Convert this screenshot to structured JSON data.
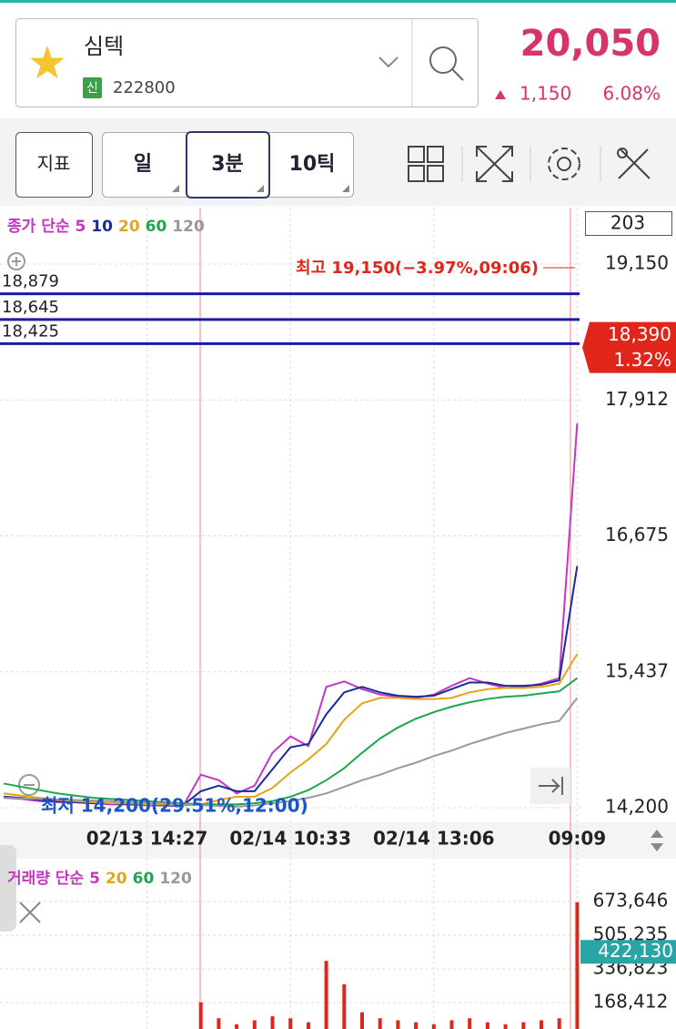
{
  "header": {
    "name": "심텍",
    "badge": "신",
    "code": "222800",
    "price": "20,050",
    "change": "1,150",
    "change_pct": "6.08%"
  },
  "toolbar": {
    "indicator": "지표",
    "periods": [
      "일",
      "3분",
      "10틱"
    ]
  },
  "count": "203",
  "chart_data": [
    {
      "type": "line",
      "legend_title": "종가 단순",
      "x": [
        null,
        null,
        null,
        null,
        null,
        null,
        null,
        null,
        "02/13 14:27",
        null,
        null,
        null,
        null,
        null,
        null,
        null,
        "02/14 10:33",
        null,
        null,
        null,
        null,
        null,
        null,
        null,
        "02/14 13:06",
        null,
        null,
        null,
        null,
        null,
        null,
        null,
        "09:09"
      ],
      "series": [
        {
          "name": "5",
          "color": "#c437c4",
          "values": [
            14290,
            14280,
            14260,
            14250,
            14250,
            14240,
            14230,
            14230,
            14220,
            14220,
            14210,
            14500,
            14450,
            14330,
            14400,
            14700,
            14850,
            14760,
            15300,
            15350,
            15280,
            15230,
            15210,
            15200,
            15230,
            15310,
            15380,
            15330,
            15290,
            15300,
            15330,
            15380,
            17700
          ]
        },
        {
          "name": "10",
          "color": "#1a2a9a",
          "values": [
            14300,
            14290,
            14270,
            14260,
            14250,
            14240,
            14240,
            14230,
            14230,
            14220,
            14220,
            14350,
            14400,
            14350,
            14350,
            14550,
            14750,
            14780,
            15050,
            15250,
            15300,
            15250,
            15220,
            15210,
            15220,
            15280,
            15340,
            15340,
            15310,
            15310,
            15320,
            15360,
            16400
          ]
        },
        {
          "name": "20",
          "color": "#e6a417",
          "values": [
            14330,
            14310,
            14290,
            14270,
            14260,
            14250,
            14240,
            14240,
            14230,
            14230,
            14220,
            14230,
            14270,
            14300,
            14300,
            14380,
            14520,
            14640,
            14780,
            15000,
            15150,
            15200,
            15200,
            15190,
            15190,
            15200,
            15250,
            15280,
            15290,
            15290,
            15300,
            15330,
            15600
          ]
        },
        {
          "name": "60",
          "color": "#1aa84a",
          "values": [
            14420,
            14390,
            14360,
            14330,
            14310,
            14290,
            14280,
            14270,
            14260,
            14250,
            14240,
            14230,
            14230,
            14230,
            14240,
            14260,
            14300,
            14360,
            14450,
            14560,
            14700,
            14830,
            14930,
            15010,
            15070,
            15120,
            15160,
            15190,
            15210,
            15220,
            15240,
            15260,
            15380
          ]
        },
        {
          "name": "120",
          "color": "#999999",
          "values": [
            14290,
            14285,
            14280,
            14275,
            14270,
            14265,
            14260,
            14250,
            14245,
            14240,
            14230,
            14225,
            14215,
            14210,
            14220,
            14240,
            14260,
            14290,
            14330,
            14390,
            14450,
            14500,
            14560,
            14610,
            14670,
            14720,
            14780,
            14830,
            14880,
            14920,
            14960,
            14990,
            15200
          ]
        }
      ],
      "ylim": [
        14092,
        19647
      ],
      "yticks": [
        {
          "value": 14200,
          "label": "14,200"
        },
        {
          "value": 15437,
          "label": "15,437"
        },
        {
          "value": 16675,
          "label": "16,675"
        },
        {
          "value": 17912,
          "label": "17,912"
        },
        {
          "value": 19150,
          "label": "19,150"
        }
      ],
      "grid": true,
      "levels": [
        {
          "value": 18879,
          "label": "18,879"
        },
        {
          "value": 18645,
          "label": "18,645"
        },
        {
          "value": 18425,
          "label": "18,425"
        }
      ],
      "level_color": "#1a1aa8",
      "current": {
        "value": 18390,
        "label": "18,390",
        "change_pct": "1.32%",
        "color": "#e0261b"
      },
      "high_note": "최고 19,150(−3.97%,09:06)",
      "low_note": "최저 14,200(29.51%,12:00)"
    },
    {
      "type": "bar",
      "legend_title": "거래량 단순",
      "legend": [
        {
          "name": "5",
          "color": "#c437c4"
        },
        {
          "name": "20",
          "color": "#e6a417"
        },
        {
          "name": "60",
          "color": "#1aa84a"
        },
        {
          "name": "120",
          "color": "#999999"
        }
      ],
      "values": [
        30000,
        25000,
        20000,
        22000,
        18000,
        20000,
        15000,
        18000,
        20000,
        25000,
        30000,
        170000,
        90000,
        60000,
        80000,
        100000,
        90000,
        70000,
        377000,
        260000,
        120000,
        90000,
        80000,
        70000,
        60000,
        80000,
        90000,
        70000,
        60000,
        70000,
        80000,
        90000,
        670000
      ],
      "color": "#e0261b",
      "ylim": [
        0,
        833000
      ],
      "yticks": [
        {
          "value": 168412,
          "label": "168,412"
        },
        {
          "value": 336823,
          "label": "336,823"
        },
        {
          "value": 505235,
          "label": "505,235"
        },
        {
          "value": 673646,
          "label": "673,646"
        }
      ],
      "current": {
        "value": 422130,
        "label": "422,130",
        "color": "#2aa5a5"
      }
    }
  ]
}
